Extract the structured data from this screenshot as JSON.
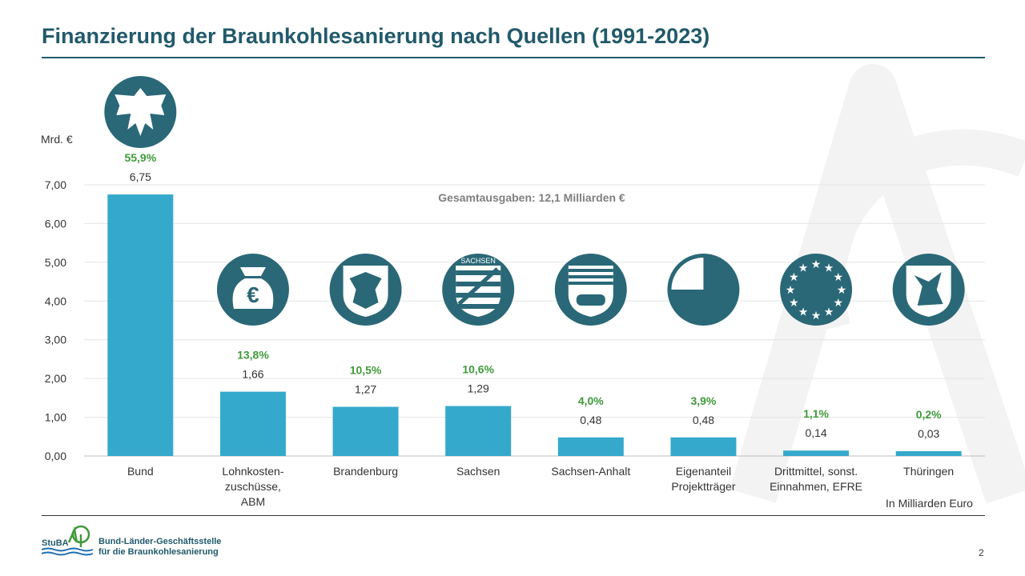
{
  "slide": {
    "title": "Finanzierung der Braunkohlesanierung nach Quellen (1991-2023)",
    "unit_note": "In Milliarden Euro",
    "page_number": "2"
  },
  "logo": {
    "abbrev": "StuBA",
    "line1": "Bund-Länder-Geschäftsstelle",
    "line2": "für die Braunkohlesanierung"
  },
  "chart_data": {
    "type": "bar",
    "categories": [
      [
        "Bund"
      ],
      [
        "Lohnkosten-",
        "zuschüsse,",
        "ABM"
      ],
      [
        "Brandenburg"
      ],
      [
        "Sachsen"
      ],
      [
        "Sachsen-Anhalt"
      ],
      [
        "Eigenanteil",
        "Projektträger"
      ],
      [
        "Drittmittel, sonst.",
        "Einnahmen, EFRE"
      ],
      [
        "Thüringen"
      ]
    ],
    "values": [
      6.75,
      1.66,
      1.27,
      1.29,
      0.48,
      0.48,
      0.14,
      0.03
    ],
    "value_labels": [
      "6,75",
      "1,66",
      "1,27",
      "1,29",
      "0,48",
      "0,48",
      "0,14",
      "0,03"
    ],
    "percent_labels": [
      "55,9%",
      "13,8%",
      "10,5%",
      "10,6%",
      "4,0%",
      "3,9%",
      "1,1%",
      "0,2%"
    ],
    "icons": [
      "federal-eagle-icon",
      "money-bag-icon",
      "brandenburg-coat-of-arms-icon",
      "saxony-coat-of-arms-icon",
      "saxony-anhalt-coat-of-arms-icon",
      "pie-slice-icon",
      "eu-stars-icon",
      "thuringia-coat-of-arms-icon"
    ],
    "ylabel": "Mrd. €",
    "ylim": [
      0,
      7
    ],
    "yticks": [
      0,
      1,
      2,
      3,
      4,
      5,
      6,
      7
    ],
    "ytick_labels": [
      "0,00",
      "1,00",
      "2,00",
      "3,00",
      "4,00",
      "5,00",
      "6,00",
      "7,00"
    ],
    "annotation": "Gesamtausgaben: 12,1 Milliarden  €",
    "grid": true,
    "colors": {
      "bar": "#35a9cc",
      "percent": "#3f9a3a",
      "icon_bg": "#2a6877",
      "title": "#215a6b"
    }
  }
}
